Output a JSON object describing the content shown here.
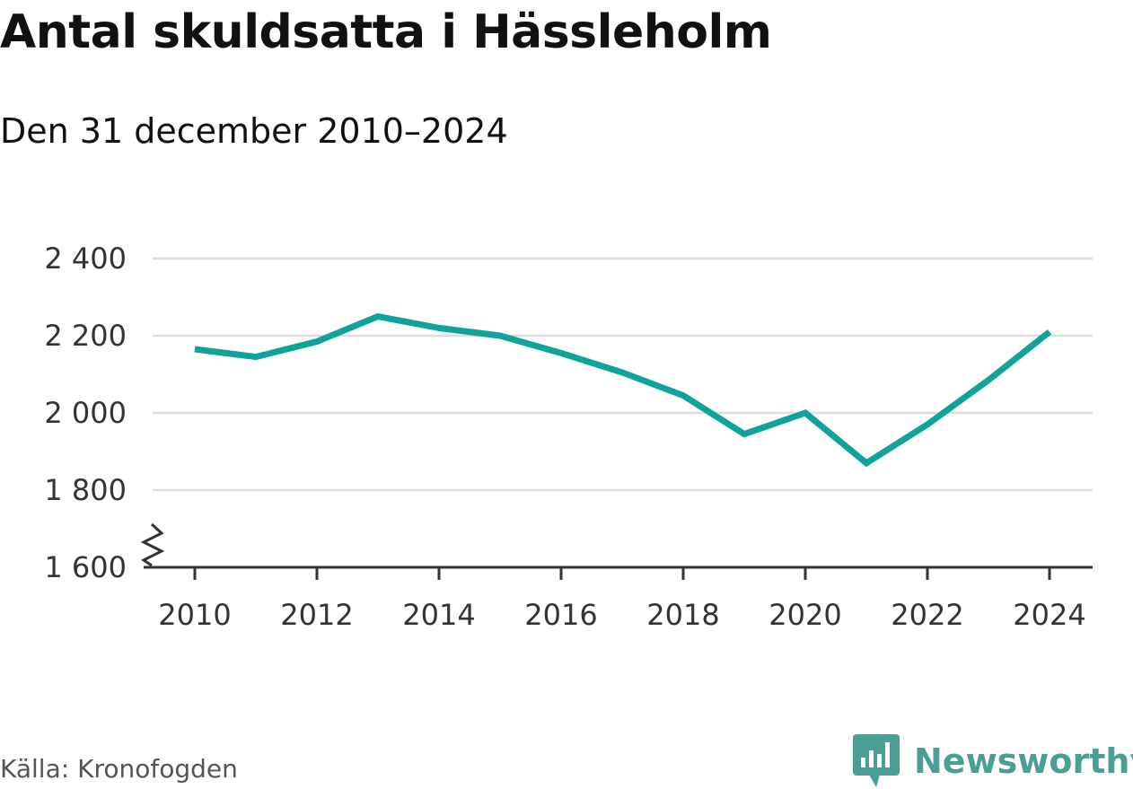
{
  "header": {
    "title": "Antal skuldsatta i Hässleholm",
    "subtitle": "Den 31 december 2010–2024"
  },
  "footer": {
    "source": "Källa: Kronofogden",
    "brand": "Newsworthy"
  },
  "colors": {
    "line": "#0fa39a",
    "brand": "#4a9e95",
    "grid": "#dddddd",
    "axis": "#333333",
    "text": "#333333"
  },
  "chart_data": {
    "type": "line",
    "title": "Antal skuldsatta i Hässleholm",
    "subtitle": "Den 31 december 2010–2024",
    "xlabel": "",
    "ylabel": "",
    "x": [
      2010,
      2011,
      2012,
      2013,
      2014,
      2015,
      2016,
      2017,
      2018,
      2019,
      2020,
      2021,
      2022,
      2023,
      2024
    ],
    "series": [
      {
        "values": [
          2165,
          2145,
          2185,
          2250,
          2220,
          2200,
          2155,
          2105,
          2045,
          1945,
          2000,
          1870,
          1970,
          2085,
          2210
        ]
      }
    ],
    "xticks": [
      2010,
      2012,
      2014,
      2016,
      2018,
      2020,
      2022,
      2024
    ],
    "xtick_labels": [
      "2010",
      "2012",
      "2014",
      "2016",
      "2018",
      "2020",
      "2022",
      "2024"
    ],
    "yticks": [
      1600,
      1800,
      2000,
      2200,
      2400
    ],
    "ytick_labels": [
      "1 600",
      "1 800",
      "2 000",
      "2 200",
      "2 400"
    ],
    "xlim": [
      2010,
      2024
    ],
    "ylim": [
      1600,
      2400
    ],
    "y_axis_break": true,
    "grid": true,
    "legend": "none"
  }
}
